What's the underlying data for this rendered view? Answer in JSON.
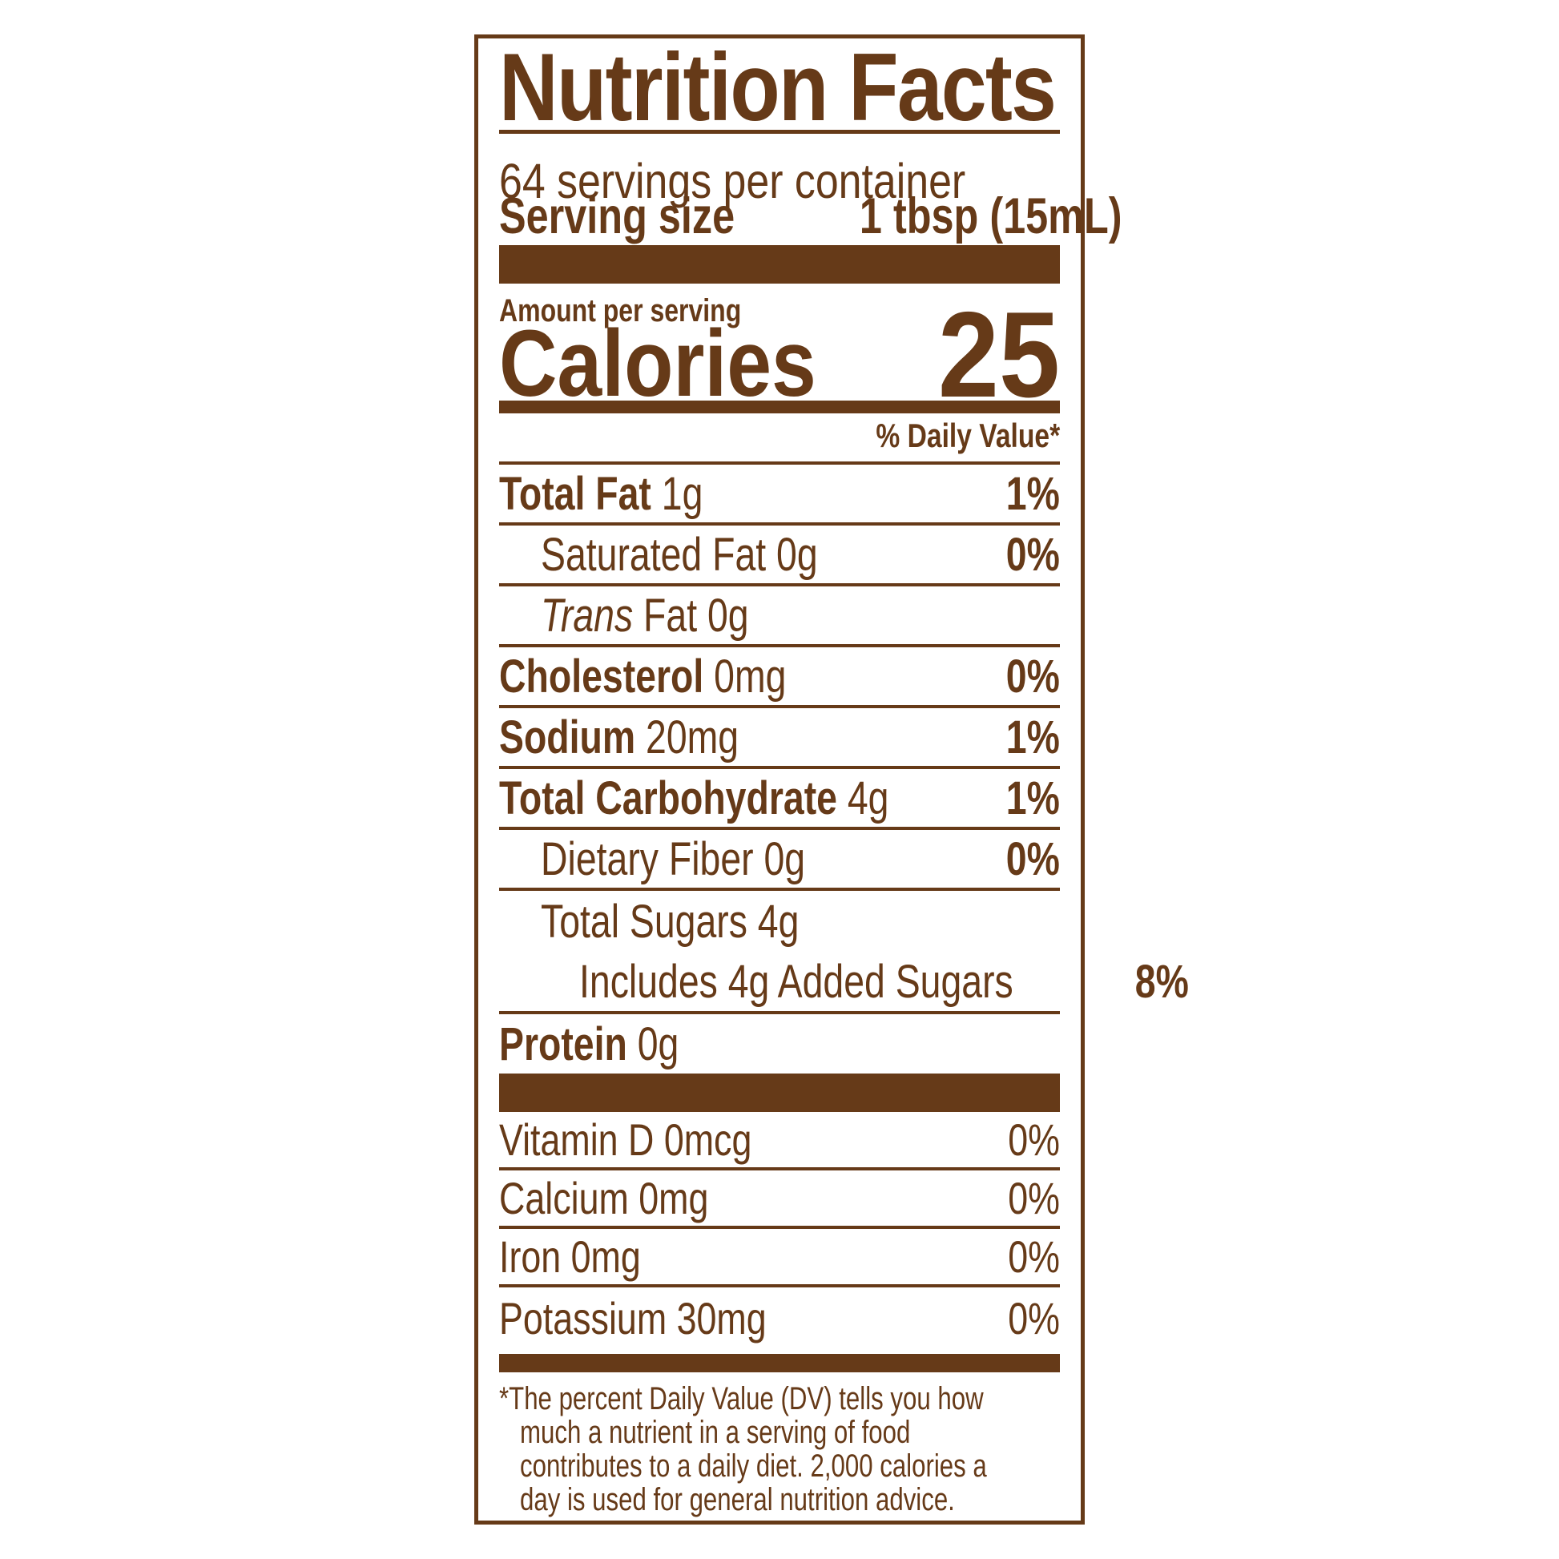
{
  "colors": {
    "brown": "#663A18",
    "background": "#FFFFFF"
  },
  "label": {
    "title": "Nutrition Facts",
    "servings_per_container": "64 servings per container",
    "serving_size_label": "Serving size",
    "serving_size_value": "1 tbsp (15mL)",
    "amount_per_serving": "Amount per serving",
    "calories_label": "Calories",
    "calories_value": "25",
    "daily_value_header": "% Daily Value*",
    "nutrients": [
      {
        "id": "total-fat",
        "segments": [
          {
            "t": "Total Fat",
            "s": "b"
          },
          {
            "t": " 1g",
            "s": "r"
          }
        ],
        "dv": "1%",
        "dv_bold": true,
        "indent": 0,
        "rule": true
      },
      {
        "id": "saturated-fat",
        "segments": [
          {
            "t": "Saturated Fat 0g",
            "s": "r"
          }
        ],
        "dv": "0%",
        "dv_bold": true,
        "indent": 1,
        "rule": true
      },
      {
        "id": "trans-fat",
        "segments": [
          {
            "t": "Trans",
            "s": "i"
          },
          {
            "t": " Fat 0g",
            "s": "r"
          }
        ],
        "dv": null,
        "dv_bold": false,
        "indent": 1,
        "rule": true
      },
      {
        "id": "cholesterol",
        "segments": [
          {
            "t": "Cholesterol",
            "s": "b"
          },
          {
            "t": " 0mg",
            "s": "r"
          }
        ],
        "dv": "0%",
        "dv_bold": true,
        "indent": 0,
        "rule": true
      },
      {
        "id": "sodium",
        "segments": [
          {
            "t": "Sodium",
            "s": "b"
          },
          {
            "t": " 20mg",
            "s": "r"
          }
        ],
        "dv": "1%",
        "dv_bold": true,
        "indent": 0,
        "rule": true
      },
      {
        "id": "total-carbohydrate",
        "segments": [
          {
            "t": "Total Carbohydrate",
            "s": "b"
          },
          {
            "t": " 4g",
            "s": "r"
          }
        ],
        "dv": "1%",
        "dv_bold": true,
        "indent": 0,
        "rule": true
      },
      {
        "id": "dietary-fiber",
        "segments": [
          {
            "t": "Dietary Fiber 0g",
            "s": "r"
          }
        ],
        "dv": "0%",
        "dv_bold": true,
        "indent": 1,
        "rule": true
      },
      {
        "id": "total-sugars",
        "segments": [
          {
            "t": "Total Sugars 4g",
            "s": "r"
          }
        ],
        "dv": null,
        "dv_bold": false,
        "indent": 1,
        "rule": false
      },
      {
        "id": "added-sugars",
        "segments": [
          {
            "t": "Includes 4g Added Sugars",
            "s": "r"
          }
        ],
        "dv": "8%",
        "dv_bold": true,
        "indent": 2,
        "rule": true
      },
      {
        "id": "protein",
        "segments": [
          {
            "t": "Protein",
            "s": "b"
          },
          {
            "t": " 0g",
            "s": "r"
          }
        ],
        "dv": null,
        "dv_bold": false,
        "indent": 0,
        "rule": false
      }
    ],
    "vitamins": [
      {
        "id": "vitamin-d",
        "name": "Vitamin D 0mcg",
        "dv": "0%"
      },
      {
        "id": "calcium",
        "name": "Calcium 0mg",
        "dv": "0%"
      },
      {
        "id": "iron",
        "name": "Iron 0mg",
        "dv": "0%"
      },
      {
        "id": "potassium",
        "name": "Potassium 30mg",
        "dv": "0%"
      }
    ],
    "footnote_lines": [
      "*The percent Daily Value (DV) tells you how",
      "much a nutrient in a serving of food",
      "contributes to a daily diet. 2,000 calories a",
      "day is used for general nutrition advice."
    ]
  }
}
